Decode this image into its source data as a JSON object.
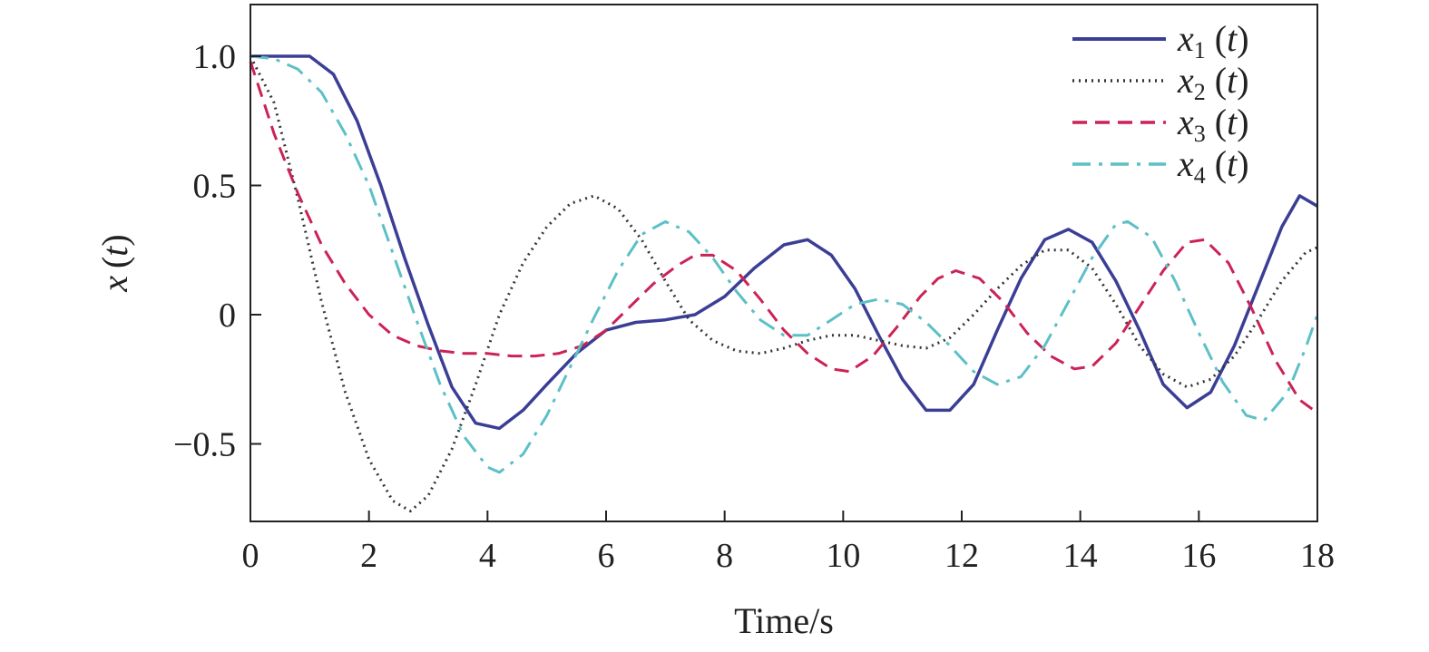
{
  "chart_data": {
    "type": "line",
    "title": "",
    "xlabel": "Time/s",
    "ylabel_var": "x",
    "ylabel_arg": "t",
    "xlim": [
      0,
      18
    ],
    "ylim": [
      -0.8,
      1.2
    ],
    "x_ticks": [
      0,
      2,
      4,
      6,
      8,
      10,
      12,
      14,
      16,
      18
    ],
    "x_tick_labels": [
      "0",
      "2",
      "4",
      "6",
      "8",
      "10",
      "12",
      "14",
      "16",
      "18"
    ],
    "y_ticks": [
      -0.5,
      0,
      0.5,
      1.0
    ],
    "y_tick_labels": [
      "−0.5",
      "0",
      "0.5",
      "1.0"
    ],
    "grid": false,
    "legend_position": "top-right",
    "series": [
      {
        "var": "x",
        "sub": "1",
        "arg": "t",
        "color": "#3a3f95",
        "style": "solid",
        "points": [
          [
            0,
            1.0
          ],
          [
            0.5,
            1.0
          ],
          [
            1,
            1.0
          ],
          [
            1.4,
            0.93
          ],
          [
            1.8,
            0.75
          ],
          [
            2.2,
            0.5
          ],
          [
            2.6,
            0.22
          ],
          [
            3,
            -0.04
          ],
          [
            3.4,
            -0.28
          ],
          [
            3.8,
            -0.42
          ],
          [
            4.2,
            -0.44
          ],
          [
            4.6,
            -0.37
          ],
          [
            5,
            -0.27
          ],
          [
            5.5,
            -0.15
          ],
          [
            6,
            -0.06
          ],
          [
            6.5,
            -0.03
          ],
          [
            7,
            -0.02
          ],
          [
            7.5,
            0.0
          ],
          [
            8,
            0.07
          ],
          [
            8.5,
            0.18
          ],
          [
            9,
            0.27
          ],
          [
            9.4,
            0.29
          ],
          [
            9.8,
            0.23
          ],
          [
            10.2,
            0.1
          ],
          [
            10.6,
            -0.08
          ],
          [
            11,
            -0.25
          ],
          [
            11.4,
            -0.37
          ],
          [
            11.8,
            -0.37
          ],
          [
            12.2,
            -0.27
          ],
          [
            12.6,
            -0.06
          ],
          [
            13,
            0.14
          ],
          [
            13.4,
            0.29
          ],
          [
            13.8,
            0.33
          ],
          [
            14.2,
            0.28
          ],
          [
            14.6,
            0.13
          ],
          [
            15,
            -0.06
          ],
          [
            15.4,
            -0.27
          ],
          [
            15.8,
            -0.36
          ],
          [
            16.2,
            -0.3
          ],
          [
            16.6,
            -0.12
          ],
          [
            17,
            0.11
          ],
          [
            17.4,
            0.34
          ],
          [
            17.7,
            0.46
          ],
          [
            18,
            0.42
          ]
        ]
      },
      {
        "var": "x",
        "sub": "2",
        "arg": "t",
        "color": "#333333",
        "style": "dotted",
        "points": [
          [
            0,
            1.0
          ],
          [
            0.4,
            0.82
          ],
          [
            0.8,
            0.45
          ],
          [
            1.2,
            0.05
          ],
          [
            1.6,
            -0.3
          ],
          [
            2,
            -0.56
          ],
          [
            2.4,
            -0.72
          ],
          [
            2.7,
            -0.76
          ],
          [
            3,
            -0.7
          ],
          [
            3.4,
            -0.52
          ],
          [
            3.8,
            -0.27
          ],
          [
            4.2,
            0.0
          ],
          [
            4.6,
            0.2
          ],
          [
            5,
            0.34
          ],
          [
            5.4,
            0.43
          ],
          [
            5.8,
            0.46
          ],
          [
            6.2,
            0.41
          ],
          [
            6.6,
            0.29
          ],
          [
            7,
            0.13
          ],
          [
            7.4,
            -0.02
          ],
          [
            7.8,
            -0.1
          ],
          [
            8.2,
            -0.14
          ],
          [
            8.6,
            -0.15
          ],
          [
            9,
            -0.13
          ],
          [
            9.4,
            -0.1
          ],
          [
            9.8,
            -0.08
          ],
          [
            10.2,
            -0.08
          ],
          [
            10.6,
            -0.1
          ],
          [
            11,
            -0.12
          ],
          [
            11.4,
            -0.13
          ],
          [
            11.8,
            -0.09
          ],
          [
            12.2,
            0.0
          ],
          [
            12.6,
            0.1
          ],
          [
            13,
            0.19
          ],
          [
            13.4,
            0.25
          ],
          [
            13.8,
            0.25
          ],
          [
            14.2,
            0.18
          ],
          [
            14.6,
            0.04
          ],
          [
            15,
            -0.12
          ],
          [
            15.4,
            -0.23
          ],
          [
            15.8,
            -0.28
          ],
          [
            16.2,
            -0.25
          ],
          [
            16.6,
            -0.16
          ],
          [
            17,
            -0.02
          ],
          [
            17.4,
            0.13
          ],
          [
            17.8,
            0.24
          ],
          [
            18,
            0.26
          ]
        ]
      },
      {
        "var": "x",
        "sub": "3",
        "arg": "t",
        "color": "#cc2255",
        "style": "dashed",
        "points": [
          [
            0,
            0.98
          ],
          [
            0.4,
            0.7
          ],
          [
            0.8,
            0.47
          ],
          [
            1.2,
            0.27
          ],
          [
            1.6,
            0.12
          ],
          [
            2,
            0.0
          ],
          [
            2.4,
            -0.08
          ],
          [
            2.8,
            -0.12
          ],
          [
            3.2,
            -0.14
          ],
          [
            3.6,
            -0.15
          ],
          [
            4,
            -0.15
          ],
          [
            4.4,
            -0.16
          ],
          [
            4.8,
            -0.16
          ],
          [
            5.2,
            -0.15
          ],
          [
            5.6,
            -0.12
          ],
          [
            6,
            -0.06
          ],
          [
            6.4,
            0.03
          ],
          [
            6.8,
            0.12
          ],
          [
            7.2,
            0.19
          ],
          [
            7.5,
            0.23
          ],
          [
            7.8,
            0.23
          ],
          [
            8.2,
            0.17
          ],
          [
            8.6,
            0.06
          ],
          [
            9,
            -0.06
          ],
          [
            9.4,
            -0.15
          ],
          [
            9.8,
            -0.21
          ],
          [
            10.1,
            -0.22
          ],
          [
            10.5,
            -0.16
          ],
          [
            10.9,
            -0.05
          ],
          [
            11.3,
            0.07
          ],
          [
            11.6,
            0.14
          ],
          [
            11.9,
            0.17
          ],
          [
            12.3,
            0.14
          ],
          [
            12.7,
            0.05
          ],
          [
            13.1,
            -0.07
          ],
          [
            13.5,
            -0.16
          ],
          [
            13.9,
            -0.21
          ],
          [
            14.2,
            -0.2
          ],
          [
            14.6,
            -0.11
          ],
          [
            15,
            0.03
          ],
          [
            15.4,
            0.17
          ],
          [
            15.8,
            0.28
          ],
          [
            16.1,
            0.29
          ],
          [
            16.5,
            0.2
          ],
          [
            16.9,
            0.02
          ],
          [
            17.3,
            -0.18
          ],
          [
            17.7,
            -0.33
          ],
          [
            18,
            -0.38
          ]
        ]
      },
      {
        "var": "x",
        "sub": "4",
        "arg": "t",
        "color": "#5cc0c6",
        "style": "dashdot",
        "points": [
          [
            0,
            1.0
          ],
          [
            0.4,
            0.99
          ],
          [
            0.8,
            0.95
          ],
          [
            1.2,
            0.86
          ],
          [
            1.6,
            0.7
          ],
          [
            2,
            0.5
          ],
          [
            2.4,
            0.24
          ],
          [
            2.8,
            -0.02
          ],
          [
            3.2,
            -0.27
          ],
          [
            3.6,
            -0.47
          ],
          [
            4,
            -0.59
          ],
          [
            4.2,
            -0.61
          ],
          [
            4.6,
            -0.54
          ],
          [
            5,
            -0.39
          ],
          [
            5.4,
            -0.2
          ],
          [
            5.8,
            -0.01
          ],
          [
            6.2,
            0.17
          ],
          [
            6.6,
            0.31
          ],
          [
            7,
            0.36
          ],
          [
            7.4,
            0.32
          ],
          [
            7.8,
            0.22
          ],
          [
            8.2,
            0.09
          ],
          [
            8.6,
            -0.02
          ],
          [
            9,
            -0.08
          ],
          [
            9.4,
            -0.08
          ],
          [
            9.8,
            -0.02
          ],
          [
            10.2,
            0.04
          ],
          [
            10.6,
            0.06
          ],
          [
            11,
            0.04
          ],
          [
            11.4,
            -0.03
          ],
          [
            11.8,
            -0.12
          ],
          [
            12.2,
            -0.22
          ],
          [
            12.6,
            -0.27
          ],
          [
            13,
            -0.24
          ],
          [
            13.4,
            -0.12
          ],
          [
            13.8,
            0.05
          ],
          [
            14.2,
            0.22
          ],
          [
            14.6,
            0.35
          ],
          [
            14.8,
            0.36
          ],
          [
            15.2,
            0.3
          ],
          [
            15.6,
            0.13
          ],
          [
            16,
            -0.07
          ],
          [
            16.4,
            -0.26
          ],
          [
            16.8,
            -0.39
          ],
          [
            17.1,
            -0.41
          ],
          [
            17.5,
            -0.3
          ],
          [
            17.8,
            -0.13
          ],
          [
            18,
            0.0
          ]
        ]
      }
    ]
  }
}
